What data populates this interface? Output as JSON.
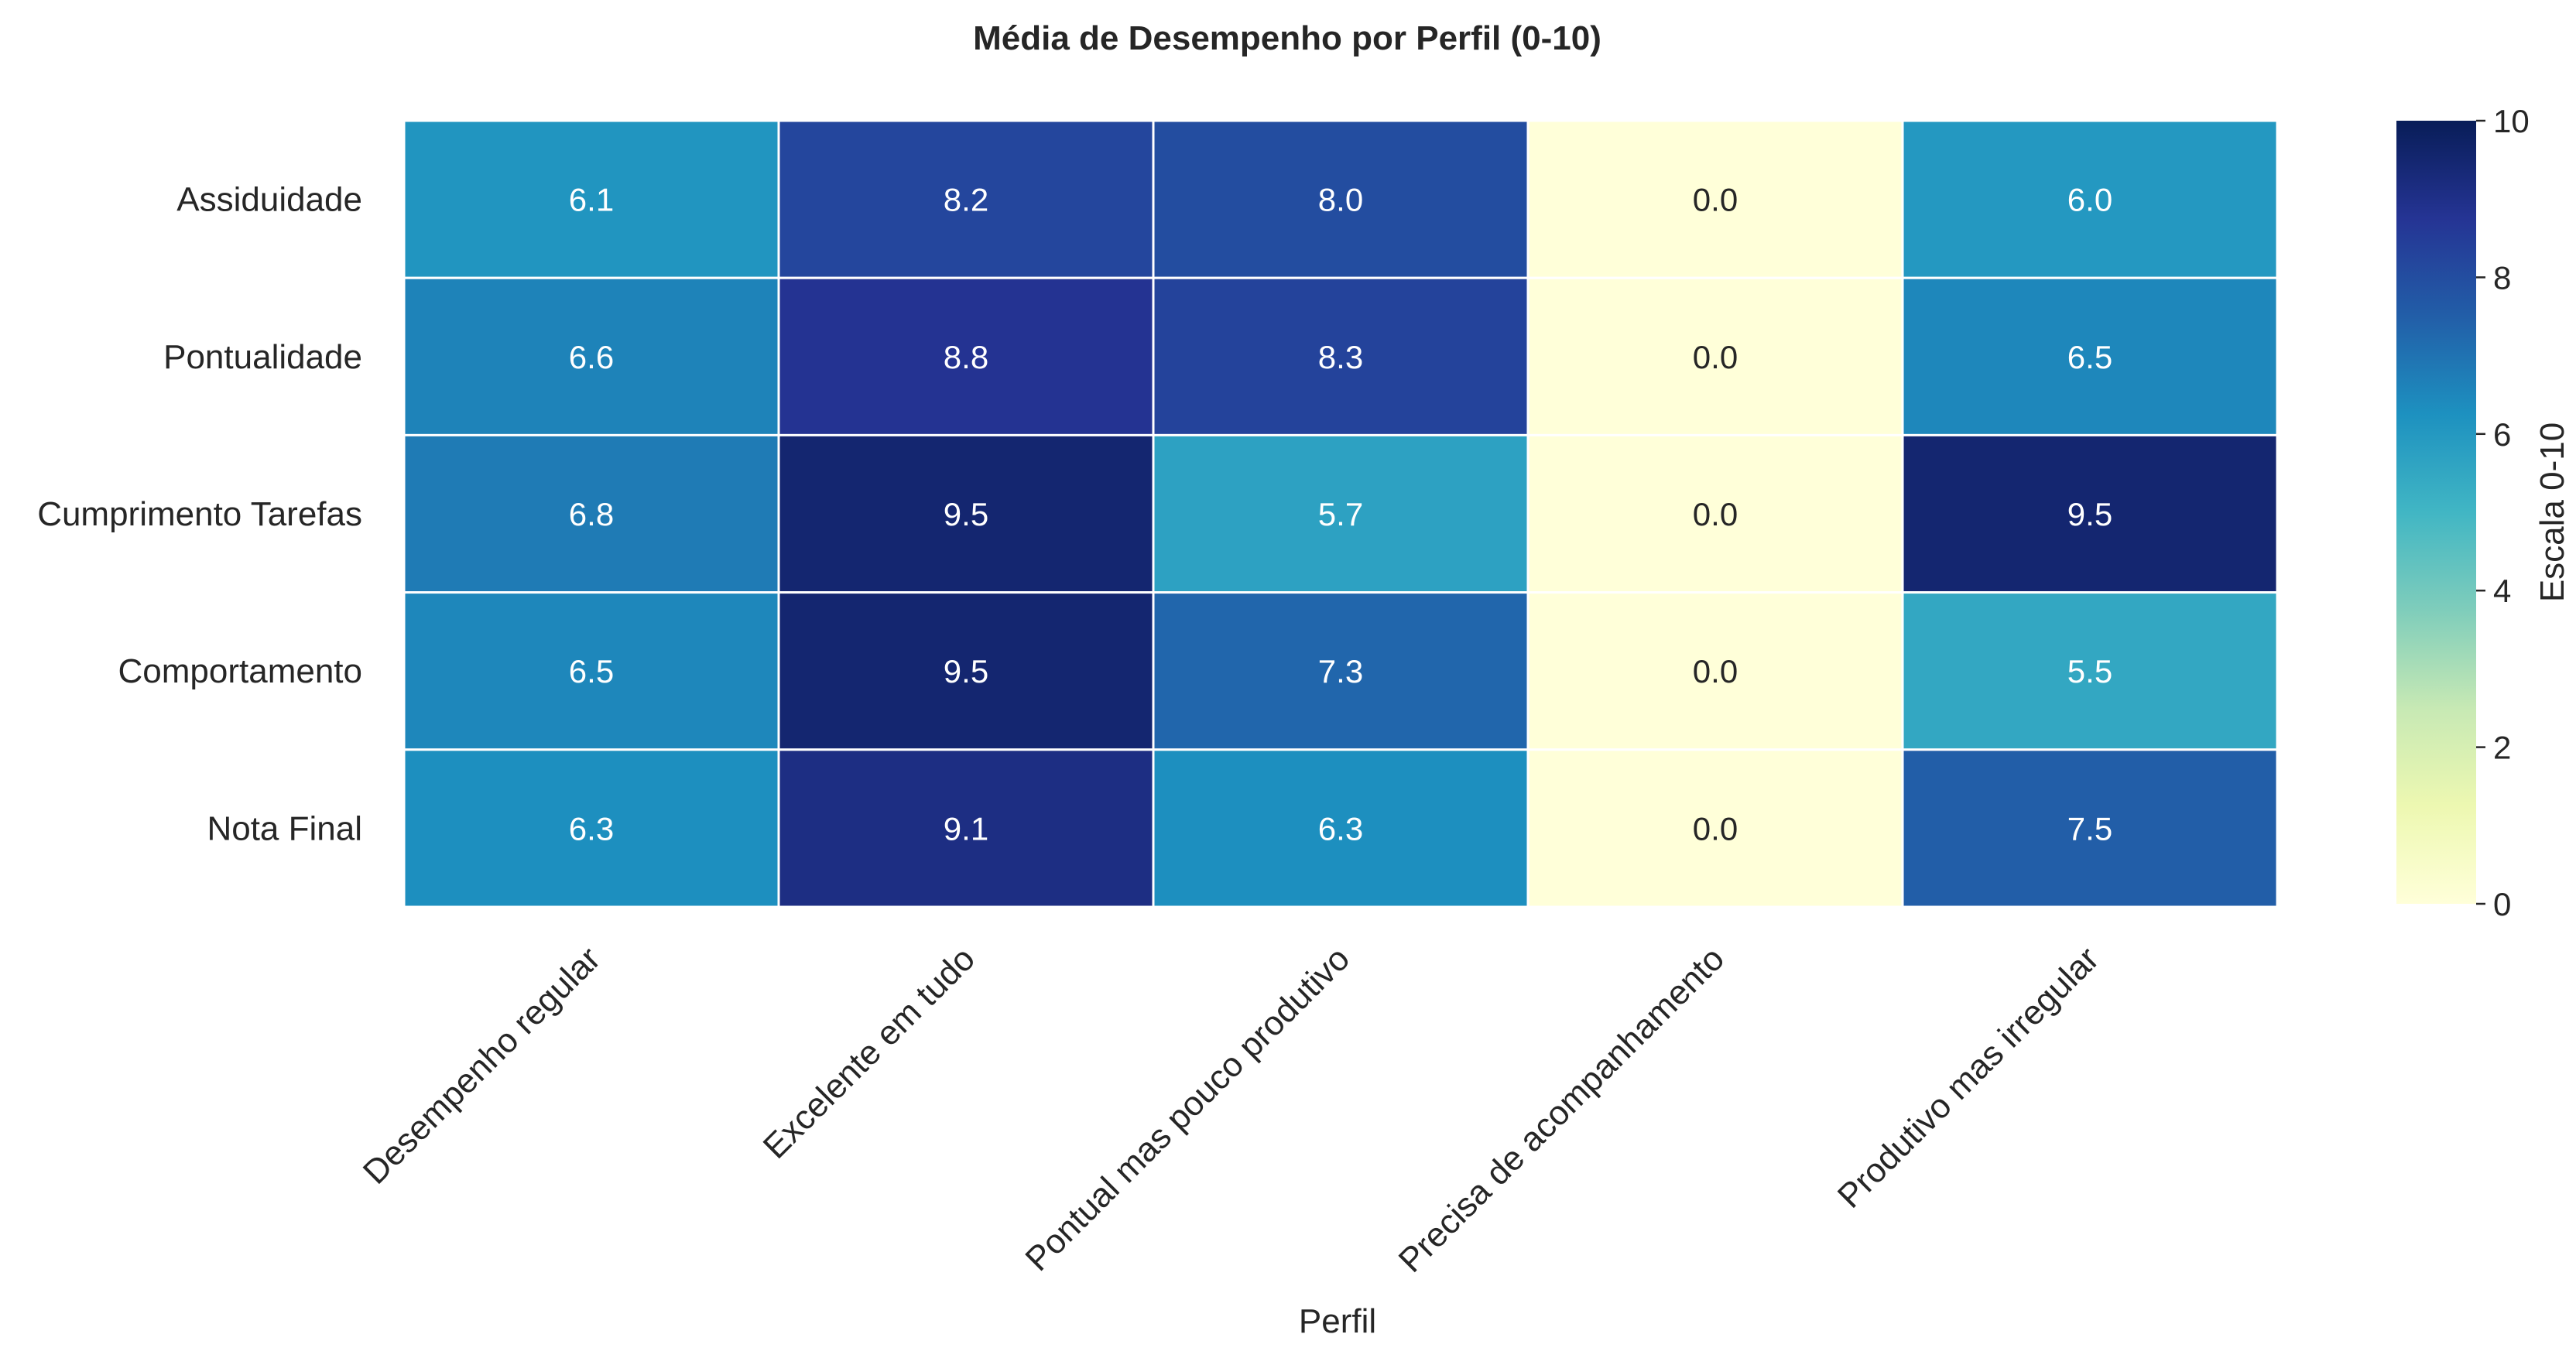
{
  "chart_data": {
    "type": "heatmap",
    "title": "Média de Desempenho por Perfil (0-10)",
    "xlabel": "Perfil",
    "ylabel": "",
    "x_categories": [
      "Desempenho regular",
      "Excelente em tudo",
      "Pontual mas pouco produtivo",
      "Precisa de acompanhamento",
      "Produtivo mas irregular"
    ],
    "y_categories": [
      "Assiduidade",
      "Pontualidade",
      "Cumprimento Tarefas",
      "Comportamento",
      "Nota Final"
    ],
    "values": [
      [
        6.1,
        8.2,
        8.0,
        0.0,
        6.0
      ],
      [
        6.6,
        8.8,
        8.3,
        0.0,
        6.5
      ],
      [
        6.8,
        9.5,
        5.7,
        0.0,
        9.5
      ],
      [
        6.5,
        9.5,
        7.3,
        0.0,
        5.5
      ],
      [
        6.3,
        9.1,
        6.3,
        0.0,
        7.5
      ]
    ],
    "value_labels": [
      [
        "6.1",
        "8.2",
        "8.0",
        "0.0",
        "6.0"
      ],
      [
        "6.6",
        "8.8",
        "8.3",
        "0.0",
        "6.5"
      ],
      [
        "6.8",
        "9.5",
        "5.7",
        "0.0",
        "9.5"
      ],
      [
        "6.5",
        "9.5",
        "7.3",
        "0.0",
        "5.5"
      ],
      [
        "6.3",
        "9.1",
        "6.3",
        "0.0",
        "7.5"
      ]
    ],
    "colorbar": {
      "label": "Escala 0-10",
      "range": [
        0,
        10
      ],
      "ticks": [
        0,
        2,
        4,
        6,
        8,
        10
      ],
      "tick_labels": [
        "0",
        "2",
        "4",
        "6",
        "8",
        "10"
      ],
      "colormap": "YlGnBu",
      "placement": "right"
    },
    "grid": false,
    "colors": {
      "cell_border": "#ffffff",
      "text_dark": "#262626",
      "text_light": "#ffffff"
    }
  }
}
